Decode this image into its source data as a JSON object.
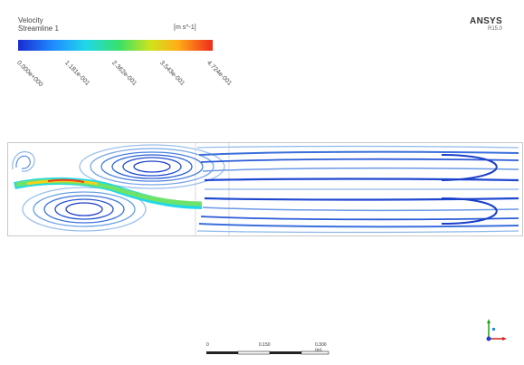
{
  "legend": {
    "title_line1": "Velocity",
    "title_line2": "Streamline 1",
    "unit": "[m s^-1]",
    "ticks": [
      "0.000e+000",
      "1.181e-001",
      "2.362e-001",
      "3.543e-001",
      "4.724e-001"
    ],
    "colors": [
      "#1a2bd1",
      "#1e8cff",
      "#20d8e8",
      "#39e06a",
      "#cfe31c",
      "#ffae18",
      "#ef2a1b"
    ]
  },
  "brand": {
    "name": "ANSYS",
    "version": "R15.0"
  },
  "scale": {
    "labels": [
      "0",
      "0.150",
      "0.300 (m)"
    ]
  },
  "axes": {
    "colors": {
      "x": "#d02020",
      "y": "#20a020",
      "z": "#2040d0"
    }
  }
}
